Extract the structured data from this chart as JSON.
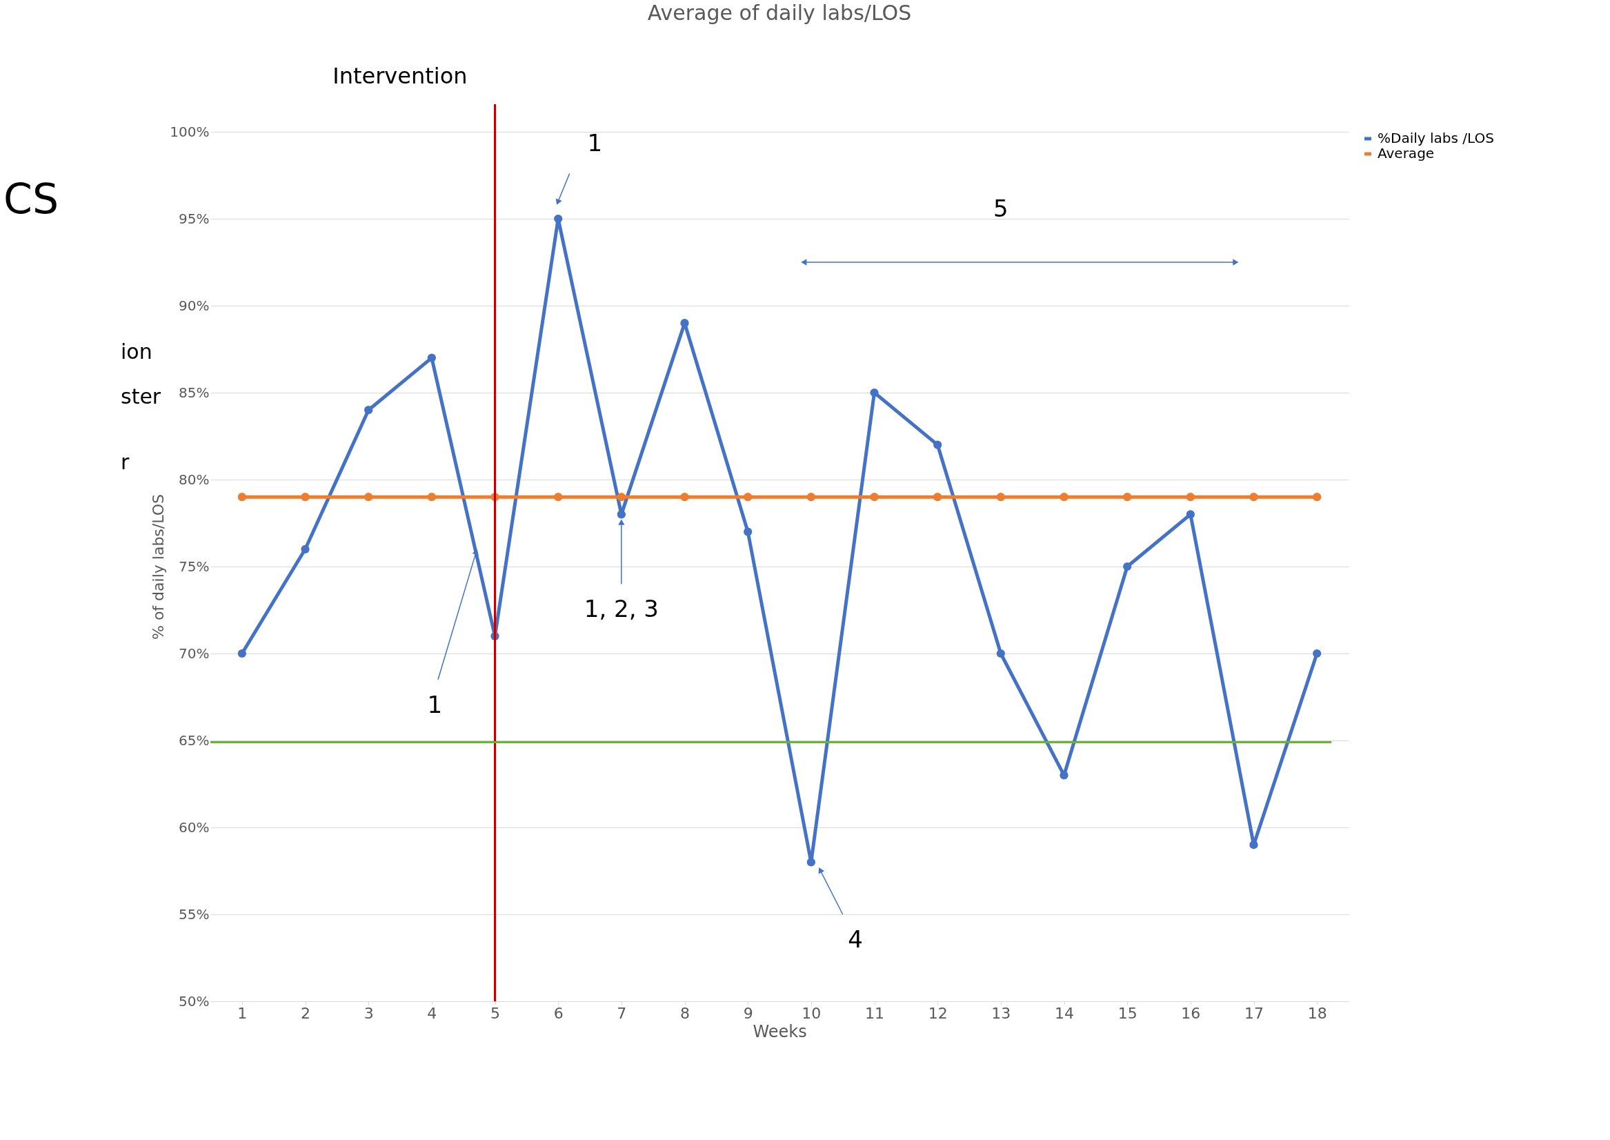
{
  "chart_data": {
    "type": "line",
    "title": "Average of daily labs/LOS",
    "xlabel": "Weeks",
    "ylabel": "% of daily labs/LOS",
    "x": [
      1,
      2,
      3,
      4,
      5,
      6,
      7,
      8,
      9,
      10,
      11,
      12,
      13,
      14,
      15,
      16,
      17,
      18
    ],
    "xlim": [
      0.5,
      18.5
    ],
    "xticks": [
      1,
      2,
      3,
      4,
      5,
      6,
      7,
      8,
      9,
      10,
      11,
      12,
      13,
      14,
      15,
      16,
      17,
      18
    ],
    "ylim": [
      50,
      100
    ],
    "yticks": [
      {
        "value": 50,
        "label": "50%"
      },
      {
        "value": 55,
        "label": "55%"
      },
      {
        "value": 60,
        "label": "60%"
      },
      {
        "value": 65,
        "label": "65%"
      },
      {
        "value": 70,
        "label": "70%"
      },
      {
        "value": 75,
        "label": "75%"
      },
      {
        "value": 80,
        "label": "80%"
      },
      {
        "value": 85,
        "label": "85%"
      },
      {
        "value": 90,
        "label": "90%"
      },
      {
        "value": 95,
        "label": "95%"
      },
      {
        "value": 100,
        "label": "100%"
      }
    ],
    "series": [
      {
        "name": "%Daily labs /LOS",
        "color": "#4472c4",
        "values": [
          70,
          76,
          84,
          87,
          71,
          95,
          78,
          89,
          77,
          58,
          85,
          82,
          70,
          63,
          75,
          78,
          59,
          70
        ]
      },
      {
        "name": "Average",
        "color": "#ed7d31",
        "values": [
          79,
          79,
          79,
          79,
          79,
          79,
          79,
          79,
          79,
          79,
          79,
          79,
          79,
          79,
          79,
          79,
          79,
          79
        ]
      }
    ],
    "ref_lines": [
      {
        "axis": "x",
        "value": 5,
        "label": "Intervention",
        "color": "#c00000"
      },
      {
        "axis": "y",
        "value": 64.9,
        "color": "#70ad47"
      }
    ],
    "annotations": [
      {
        "text": "1",
        "x": 6,
        "y": 96
      },
      {
        "text": "1, 2, 3",
        "x": 7,
        "y": 77.5
      },
      {
        "text": "1",
        "x": 4.7,
        "y": 75.8
      },
      {
        "text": "4",
        "x": 10.15,
        "y": 57.5
      },
      "5",
      "CS",
      "ion",
      "ster",
      "r"
    ],
    "marker": "circle",
    "line_style": "solid",
    "grid": "y",
    "legend": "right"
  }
}
